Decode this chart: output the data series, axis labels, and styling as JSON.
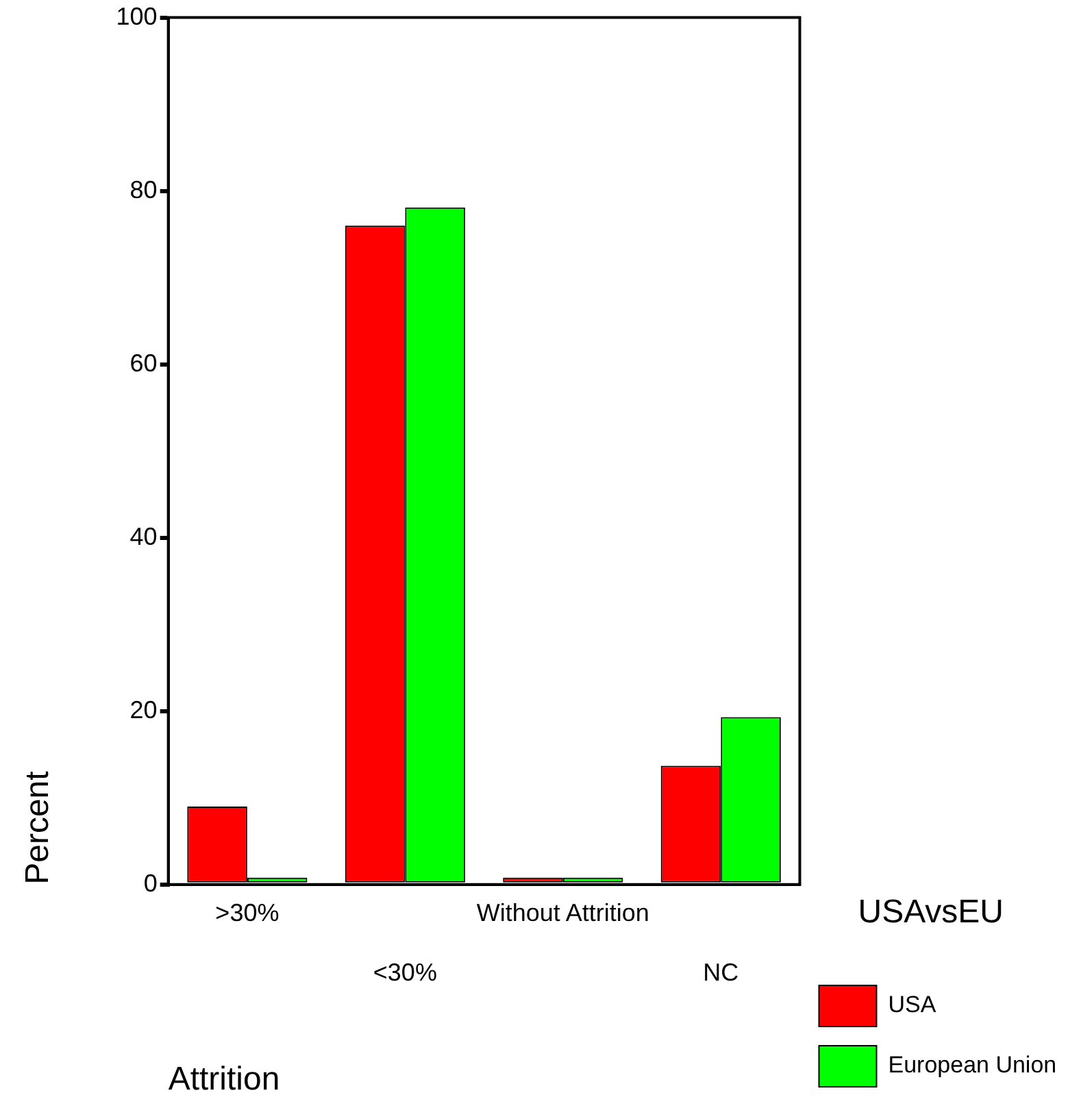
{
  "chart_data": {
    "type": "bar",
    "xlabel": "Attrition",
    "ylabel": "Percent",
    "legend_title": "USAvsEU",
    "categories": [
      ">30%",
      "<30%",
      "Without Attrition",
      "NC"
    ],
    "series": [
      {
        "name": "USA",
        "color": "#ff0000",
        "values": [
          9.0,
          76.0,
          0.8,
          13.7
        ]
      },
      {
        "name": "European Union",
        "color": "#00ff00",
        "values": [
          0.8,
          78.1,
          0.8,
          19.3
        ]
      }
    ],
    "ylim": [
      0,
      100
    ],
    "yticks": [
      0,
      20,
      40,
      60,
      80,
      100
    ],
    "grid": false,
    "legend": "right"
  }
}
